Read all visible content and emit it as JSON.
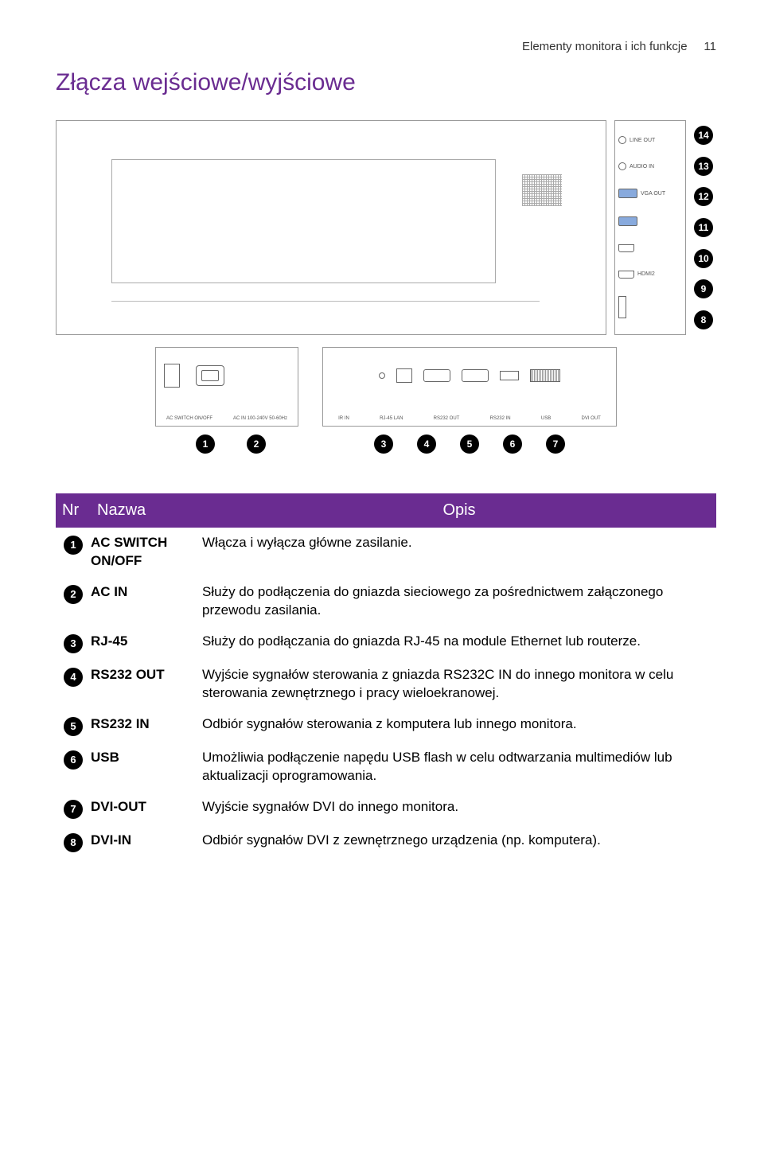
{
  "header": {
    "text": "Elementy monitora i ich funkcje",
    "page_number": "11"
  },
  "title": "Złącza wejściowe/wyjściowe",
  "colors": {
    "accent": "#6a2c91",
    "badge_bg": "#000000",
    "badge_fg": "#ffffff",
    "border": "#999999"
  },
  "side_ports": [
    {
      "label": "LINE OUT",
      "badge": "14",
      "type": "jack"
    },
    {
      "label": "AUDIO IN",
      "badge": "13",
      "type": "jack"
    },
    {
      "label": "VGA OUT",
      "badge": "12",
      "type": "dsub"
    },
    {
      "label": "",
      "badge": "11",
      "type": "dsub"
    },
    {
      "label": "",
      "badge": "10",
      "type": "hdmi"
    },
    {
      "label": "HDMI2",
      "badge": "9",
      "type": "hdmi"
    },
    {
      "label": "",
      "badge": "8",
      "type": "range"
    }
  ],
  "bottom_badges_a": [
    "1",
    "2"
  ],
  "bottom_badges_b": [
    "3",
    "4",
    "5",
    "6",
    "7"
  ],
  "panel_a_labels": [
    "AC SWITCH ON/OFF",
    "AC IN 100-240V 50-60Hz"
  ],
  "panel_b_labels": [
    "IR IN",
    "RJ-45 LAN",
    "RS232 OUT",
    "RS232 IN",
    "USB",
    "DVI OUT"
  ],
  "table": {
    "headers": {
      "nr": "Nr",
      "nazwa": "Nazwa",
      "opis": "Opis"
    },
    "rows": [
      {
        "n": "1",
        "name": "AC SWITCH ON/OFF",
        "desc": "Włącza i wyłącza główne zasilanie."
      },
      {
        "n": "2",
        "name": "AC IN",
        "desc": "Służy do podłączenia do gniazda sieciowego za pośrednictwem załączonego przewodu zasilania."
      },
      {
        "n": "3",
        "name": "RJ-45",
        "desc": "Służy do podłączania do gniazda RJ-45 na module Ethernet lub routerze."
      },
      {
        "n": "4",
        "name": "RS232 OUT",
        "desc": "Wyjście sygnałów sterowania z gniazda RS232C IN do innego monitora w celu sterowania zewnętrznego i pracy wieloekranowej."
      },
      {
        "n": "5",
        "name": "RS232 IN",
        "desc": "Odbiór sygnałów sterowania z komputera lub innego monitora."
      },
      {
        "n": "6",
        "name": "USB",
        "desc": "Umożliwia podłączenie napędu USB flash w celu odtwarzania multimediów lub aktualizacji oprogramowania."
      },
      {
        "n": "7",
        "name": "DVI-OUT",
        "desc": "Wyjście sygnałów DVI do innego monitora."
      },
      {
        "n": "8",
        "name": "DVI-IN",
        "desc": "Odbiór sygnałów DVI z zewnętrznego urządzenia (np. komputera)."
      }
    ]
  }
}
